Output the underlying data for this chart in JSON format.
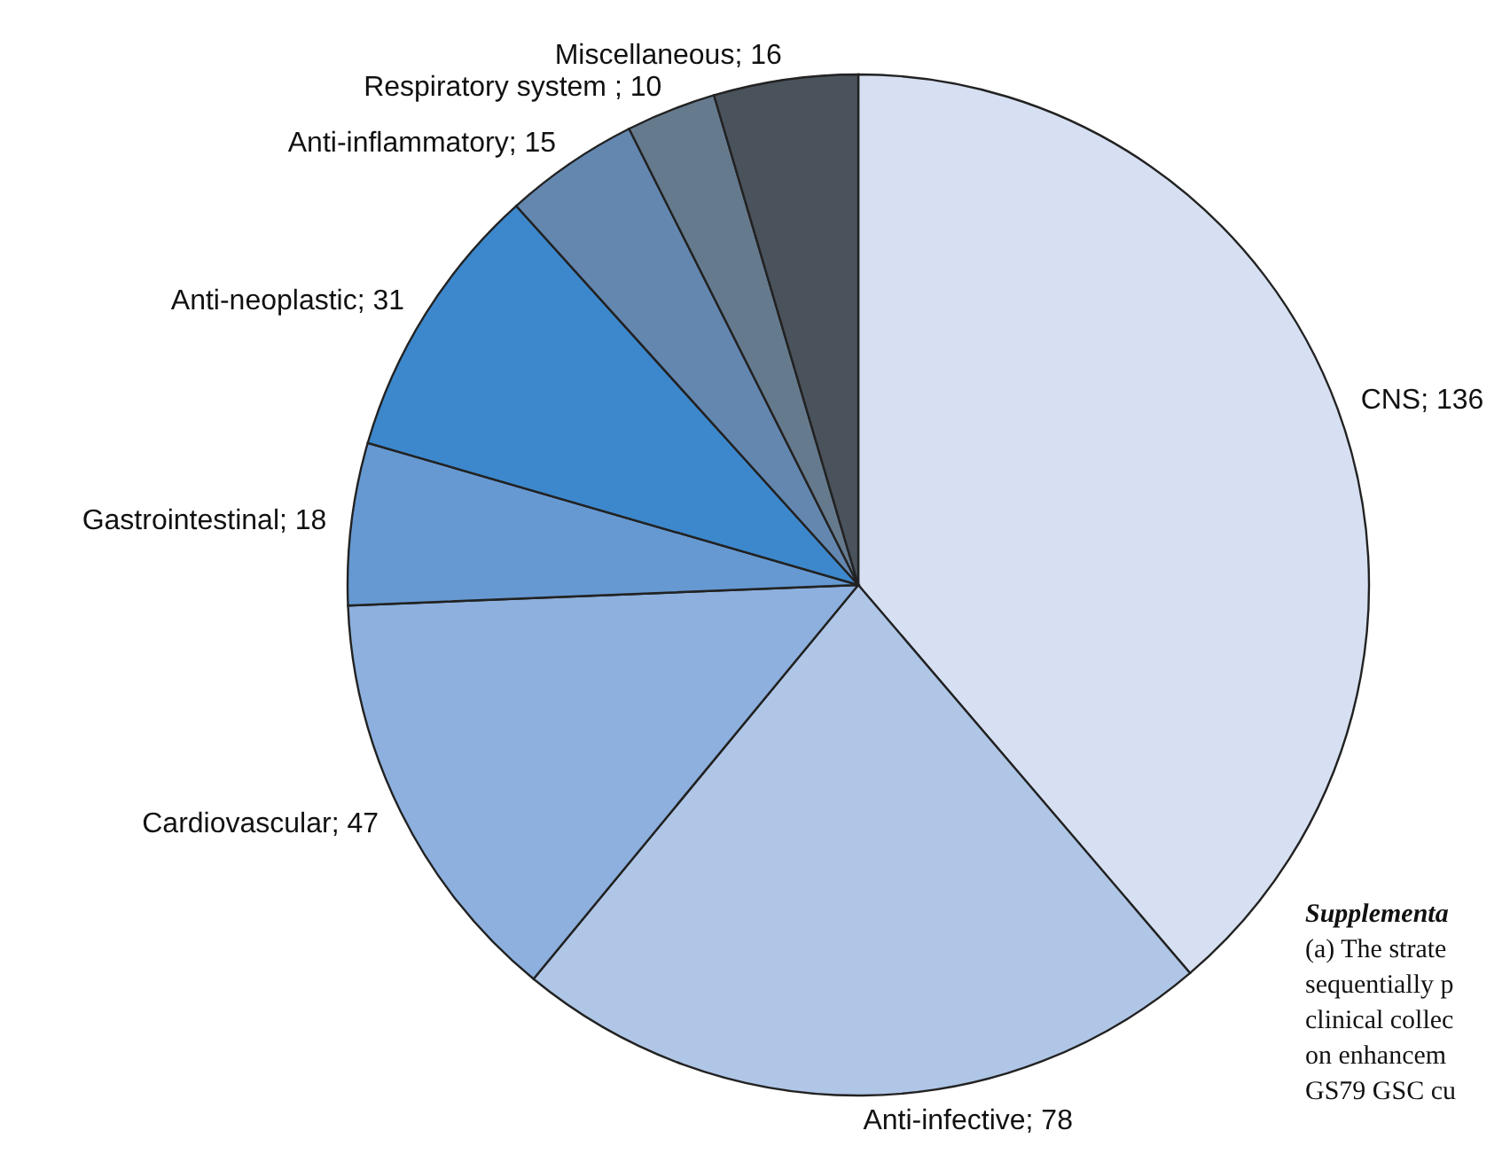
{
  "chart_data": {
    "type": "pie",
    "categories": [
      "CNS",
      "Anti-infective",
      "Cardiovascular",
      "Gastrointestinal",
      "Anti-neoplastic",
      "Anti-inflammatory",
      "Respiratory system ",
      "Miscellaneous"
    ],
    "values": [
      136,
      78,
      47,
      18,
      31,
      15,
      10,
      16
    ],
    "colors": [
      "#d6e0f2",
      "#b0c6e6",
      "#8db0de",
      "#6699d2",
      "#3d88cc",
      "#6487b0",
      "#667a8e",
      "#4a525c"
    ],
    "value_labels": [
      "; 136",
      "; 78",
      "; 47",
      "; 18",
      "; 31",
      "; 15",
      "; 10",
      "; 16"
    ],
    "legend": false,
    "annotations": [
      "Supplementa",
      "(a) The strate",
      "sequentially p",
      "clinical collec",
      "on enhancem",
      "GS79 GSC cu"
    ]
  }
}
